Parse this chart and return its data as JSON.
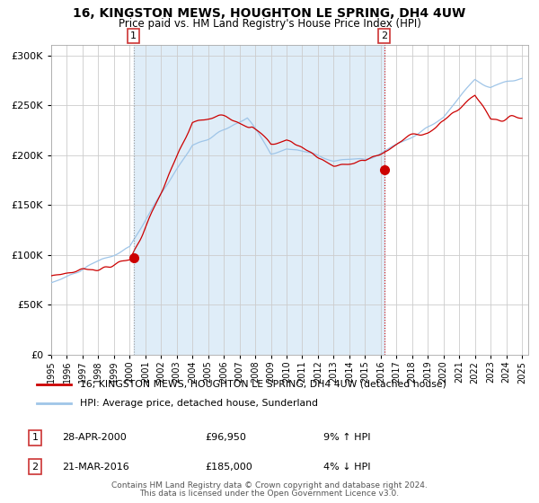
{
  "title": "16, KINGSTON MEWS, HOUGHTON LE SPRING, DH4 4UW",
  "subtitle": "Price paid vs. HM Land Registry's House Price Index (HPI)",
  "legend_line1": "16, KINGSTON MEWS, HOUGHTON LE SPRING, DH4 4UW (detached house)",
  "legend_line2": "HPI: Average price, detached house, Sunderland",
  "annotation1_label": "1",
  "annotation1_date": "28-APR-2000",
  "annotation1_price": "£96,950",
  "annotation1_hpi": "9% ↑ HPI",
  "annotation1_year": 2000.25,
  "annotation1_value": 96950,
  "annotation2_label": "2",
  "annotation2_date": "21-MAR-2016",
  "annotation2_price": "£185,000",
  "annotation2_hpi": "4% ↓ HPI",
  "annotation2_year": 2016.22,
  "annotation2_value": 185000,
  "hpi_color": "#9fc5e8",
  "price_color": "#cc0000",
  "vline1_color": "#999999",
  "vline2_color": "#cc0000",
  "marker_color": "#cc0000",
  "bg_shading_color": "#daeaf7",
  "ylim": [
    0,
    310000
  ],
  "yticks": [
    0,
    50000,
    100000,
    150000,
    200000,
    250000,
    300000
  ],
  "xlim_start": 1995,
  "xlim_end": 2025.4,
  "footer_line1": "Contains HM Land Registry data © Crown copyright and database right 2024.",
  "footer_line2": "This data is licensed under the Open Government Licence v3.0."
}
